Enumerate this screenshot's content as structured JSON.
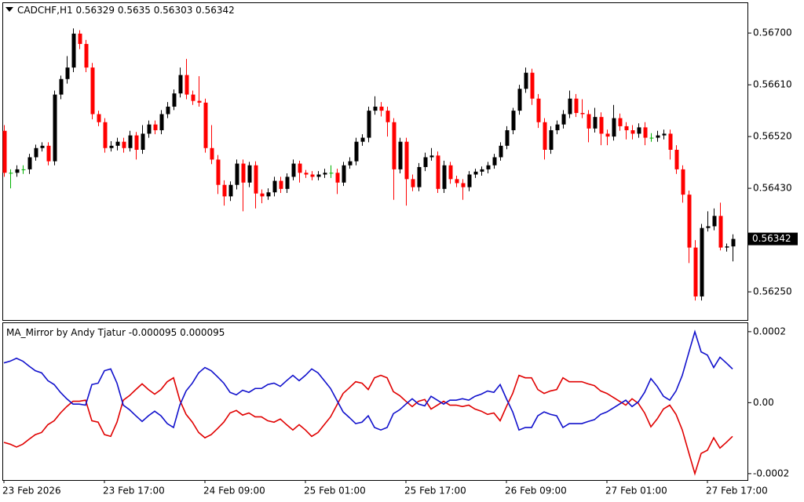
{
  "chart_data": [
    {
      "type": "candlestick",
      "title": "CADCHF,H1",
      "categories": [
        "23 Feb 2026",
        null,
        null,
        null,
        null,
        null,
        null,
        null,
        null,
        null,
        null,
        null,
        null,
        null,
        null,
        null,
        "23 Feb 17:00",
        null,
        null,
        null,
        null,
        null,
        null,
        null,
        null,
        null,
        null,
        null,
        null,
        null,
        null,
        null,
        "24 Feb 09:00",
        null,
        null,
        null,
        null,
        null,
        null,
        null,
        null,
        null,
        null,
        null,
        null,
        null,
        null,
        null,
        "25 Feb 01:00",
        null,
        null,
        null,
        null,
        null,
        null,
        null,
        null,
        null,
        null,
        null,
        null,
        null,
        null,
        null,
        "25 Feb 17:00",
        null,
        null,
        null,
        null,
        null,
        null,
        null,
        null,
        null,
        null,
        null,
        null,
        null,
        null,
        null,
        "26 Feb 09:00",
        null,
        null,
        null,
        null,
        null,
        null,
        null,
        null,
        null,
        null,
        null,
        null,
        null,
        null,
        null,
        "27 Feb 01:00",
        null,
        null,
        null,
        null,
        null,
        null,
        null,
        null,
        null,
        null,
        null,
        null,
        null,
        null,
        null,
        "27 Feb 17:00",
        null,
        null,
        null,
        null
      ],
      "open": [
        0.5653,
        0.56457,
        0.56457,
        0.56463,
        0.56463,
        0.56484,
        0.565,
        0.56504,
        0.56477,
        0.56593,
        0.5662,
        0.5664,
        0.56699,
        0.56681,
        0.5664,
        0.56559,
        0.56545,
        0.565,
        0.56504,
        0.56511,
        0.565,
        0.56522,
        0.56497,
        0.56525,
        0.56541,
        0.56531,
        0.56559,
        0.56572,
        0.56595,
        0.56627,
        0.56593,
        0.56582,
        0.56579,
        0.565,
        0.5648,
        0.56436,
        0.56416,
        0.56436,
        0.56473,
        0.5644,
        0.5647,
        0.56421,
        0.56416,
        0.56423,
        0.56443,
        0.56429,
        0.5645,
        0.56473,
        0.56457,
        0.56454,
        0.5645,
        0.56454,
        0.56457,
        0.56457,
        0.5644,
        0.5647,
        0.56477,
        0.56511,
        0.56518,
        0.56565,
        0.56572,
        0.56565,
        0.56545,
        0.56463,
        0.56511,
        0.56446,
        0.56432,
        0.56467,
        0.56484,
        0.56487,
        0.56429,
        0.5647,
        0.56446,
        0.56439,
        0.56432,
        0.56454,
        0.56459,
        0.56463,
        0.5647,
        0.56484,
        0.56504,
        0.56531,
        0.56565,
        0.56603,
        0.56631,
        0.56586,
        0.56545,
        0.56497,
        0.56531,
        0.56541,
        0.56559,
        0.56586,
        0.56561,
        0.56559,
        0.56534,
        0.56554,
        0.56525,
        0.5652,
        0.56552,
        0.56538,
        0.56531,
        0.56525,
        0.56536,
        0.56518,
        0.56518,
        0.56522,
        0.56525,
        0.56497,
        0.56463,
        0.56419,
        0.56327,
        0.56242,
        0.56361,
        0.56364,
        0.56382,
        0.56327,
        0.56329
      ],
      "high": [
        0.5654,
        0.56463,
        0.5647,
        0.5647,
        0.5649,
        0.56506,
        0.5651,
        0.5651,
        0.566,
        0.56626,
        0.5666,
        0.56708,
        0.56705,
        0.56688,
        0.56648,
        0.56565,
        0.56552,
        0.56512,
        0.56518,
        0.56518,
        0.5653,
        0.56528,
        0.5654,
        0.56548,
        0.56548,
        0.56566,
        0.5658,
        0.56602,
        0.5664,
        0.56655,
        0.566,
        0.56625,
        0.56586,
        0.5654,
        0.56488,
        0.56444,
        0.56442,
        0.5648,
        0.5648,
        0.56476,
        0.56477,
        0.56428,
        0.5643,
        0.5645,
        0.5645,
        0.56456,
        0.5648,
        0.56478,
        0.56462,
        0.5646,
        0.5646,
        0.56464,
        0.5647,
        0.56464,
        0.56476,
        0.56484,
        0.56518,
        0.56524,
        0.56572,
        0.5659,
        0.5658,
        0.56572,
        0.56552,
        0.56518,
        0.56518,
        0.56454,
        0.56474,
        0.56492,
        0.565,
        0.56494,
        0.56478,
        0.56476,
        0.56452,
        0.56446,
        0.5646,
        0.56464,
        0.56468,
        0.56476,
        0.5649,
        0.5651,
        0.56538,
        0.5657,
        0.5661,
        0.5664,
        0.56638,
        0.56594,
        0.56552,
        0.56538,
        0.56548,
        0.56566,
        0.566,
        0.56594,
        0.56585,
        0.56566,
        0.5657,
        0.56562,
        0.56532,
        0.56575,
        0.5656,
        0.56545,
        0.5654,
        0.56543,
        0.56545,
        0.56526,
        0.5653,
        0.56532,
        0.56532,
        0.56505,
        0.5647,
        0.56426,
        0.5634,
        0.56368,
        0.5639,
        0.56395,
        0.56405,
        0.56334,
        0.5635
      ],
      "low": [
        0.5645,
        0.5643,
        0.5645,
        0.56455,
        0.56455,
        0.56478,
        0.56494,
        0.5647,
        0.5647,
        0.56585,
        0.56612,
        0.56632,
        0.56672,
        0.56632,
        0.5655,
        0.56538,
        0.56492,
        0.56494,
        0.56496,
        0.56492,
        0.56494,
        0.5648,
        0.5649,
        0.56518,
        0.56524,
        0.56524,
        0.56552,
        0.56566,
        0.56588,
        0.56585,
        0.56575,
        0.56572,
        0.56492,
        0.56472,
        0.5642,
        0.564,
        0.56408,
        0.56428,
        0.5639,
        0.56432,
        0.56395,
        0.56404,
        0.5641,
        0.56416,
        0.56422,
        0.56422,
        0.56444,
        0.5644,
        0.56448,
        0.56444,
        0.56444,
        0.56448,
        0.56448,
        0.5642,
        0.56434,
        0.56464,
        0.5647,
        0.56504,
        0.5651,
        0.56558,
        0.56555,
        0.5652,
        0.5641,
        0.56456,
        0.564,
        0.56425,
        0.56425,
        0.5646,
        0.56478,
        0.56422,
        0.56422,
        0.56438,
        0.56432,
        0.5641,
        0.56425,
        0.56448,
        0.56452,
        0.56456,
        0.56464,
        0.56478,
        0.56498,
        0.56524,
        0.56558,
        0.56596,
        0.56575,
        0.56535,
        0.5648,
        0.5649,
        0.56524,
        0.56534,
        0.56552,
        0.56554,
        0.56552,
        0.5651,
        0.56527,
        0.56505,
        0.56505,
        0.56513,
        0.5653,
        0.56515,
        0.56515,
        0.56518,
        0.56505,
        0.56511,
        0.56511,
        0.56515,
        0.5648,
        0.56455,
        0.56405,
        0.563,
        0.56235,
        0.56235,
        0.56355,
        0.56357,
        0.56322,
        0.5632,
        0.56303
      ],
      "close": [
        0.56457,
        0.56457,
        0.56463,
        0.56463,
        0.56484,
        0.565,
        0.56504,
        0.56477,
        0.56593,
        0.5662,
        0.5664,
        0.56699,
        0.56681,
        0.5664,
        0.56559,
        0.56545,
        0.565,
        0.56504,
        0.56511,
        0.565,
        0.56522,
        0.56497,
        0.56525,
        0.56541,
        0.56531,
        0.56559,
        0.56572,
        0.56595,
        0.56627,
        0.56593,
        0.56582,
        0.56579,
        0.565,
        0.5648,
        0.56436,
        0.56416,
        0.56436,
        0.56473,
        0.5644,
        0.5647,
        0.56421,
        0.56416,
        0.56423,
        0.56443,
        0.56429,
        0.5645,
        0.56473,
        0.56457,
        0.56454,
        0.5645,
        0.56454,
        0.56457,
        0.56457,
        0.5644,
        0.5647,
        0.56477,
        0.56511,
        0.56518,
        0.56565,
        0.56572,
        0.56565,
        0.56545,
        0.56463,
        0.56511,
        0.56446,
        0.56432,
        0.56467,
        0.56484,
        0.56487,
        0.56429,
        0.5647,
        0.56446,
        0.56439,
        0.56432,
        0.56454,
        0.56459,
        0.56463,
        0.5647,
        0.56484,
        0.56504,
        0.56531,
        0.56565,
        0.56603,
        0.56631,
        0.56586,
        0.56545,
        0.56497,
        0.56531,
        0.56541,
        0.56559,
        0.56586,
        0.56561,
        0.56559,
        0.56534,
        0.56554,
        0.56525,
        0.5652,
        0.56552,
        0.56538,
        0.56531,
        0.56525,
        0.56536,
        0.56518,
        0.56518,
        0.56522,
        0.56525,
        0.56497,
        0.56463,
        0.56419,
        0.56327,
        0.56242,
        0.56361,
        0.56364,
        0.56382,
        0.56327,
        0.56329,
        0.56342
      ],
      "ylim": [
        0.56201,
        0.56752
      ],
      "yticks": [
        {
          "value": 0.567,
          "label": "0.56700"
        },
        {
          "value": 0.5661,
          "label": "0.56610"
        },
        {
          "value": 0.5652,
          "label": "0.56520"
        },
        {
          "value": 0.5643,
          "label": "0.56430"
        },
        {
          "value": 0.5625,
          "label": "0.56250"
        }
      ],
      "up_color": "#000000",
      "down_color": "#ff0000",
      "doji_color": "#00b000"
    },
    {
      "type": "line",
      "title": "MA_Mirror by Andy Tjatur",
      "series": [
        {
          "color": "#e00000",
          "values": [
            -0.000112,
            -0.000117,
            -0.000125,
            -0.000117,
            -0.000103,
            -9e-05,
            -8.4e-05,
            -6.2e-05,
            -5.1e-05,
            -2.9e-05,
            -1.1e-05,
            4e-06,
            4e-06,
            7e-06,
            -5.1e-05,
            -5.5e-05,
            -9e-05,
            -9.5e-05,
            -5.5e-05,
            7e-06,
            2e-05,
            3.7e-05,
            5.3e-05,
            3.7e-05,
            2.4e-05,
            3.7e-05,
            5.9e-05,
            7e-05,
            7e-06,
            -3.3e-05,
            -5.5e-05,
            -8.4e-05,
            -9.9e-05,
            -9e-05,
            -7.3e-05,
            -5.5e-05,
            -2.9e-05,
            -2.2e-05,
            -3.5e-05,
            -2.9e-05,
            -4e-05,
            -4e-05,
            -5.1e-05,
            -5.5e-05,
            -4.6e-05,
            -6.2e-05,
            -7.7e-05,
            -6.2e-05,
            -7.7e-05,
            -9.5e-05,
            -8.4e-05,
            -6.2e-05,
            -4e-05,
            -7e-06,
            2.6e-05,
            4.2e-05,
            5.9e-05,
            5.5e-05,
            3.7e-05,
            7e-05,
            7.7e-05,
            7e-05,
            3.1e-05,
            2e-05,
            4e-06,
            -1.1e-05,
            4e-06,
            9e-06,
            -1.8e-05,
            -7e-06,
            4e-06,
            -7e-06,
            -7e-06,
            -1.1e-05,
            -7e-06,
            -1.8e-05,
            -2.4e-05,
            -3.3e-05,
            -2.9e-05,
            -5.1e-05,
            -1.1e-05,
            2.6e-05,
            7.7e-05,
            7e-05,
            7e-05,
            3.7e-05,
            2.6e-05,
            3.3e-05,
            3.7e-05,
            7e-05,
            5.9e-05,
            5.9e-05,
            5.9e-05,
            5.3e-05,
            4.8e-05,
            3.3e-05,
            2.6e-05,
            1.5e-05,
            4e-06,
            -7e-06,
            1.1e-05,
            -2e-06,
            -2.9e-05,
            -6.8e-05,
            -4.6e-05,
            -1.8e-05,
            -7e-06,
            -3.3e-05,
            -7.7e-05,
            -0.000139,
            -0.0002,
            -0.000143,
            -0.000134,
            -9.9e-05,
            -0.000128,
            -0.000112,
            -9.5e-05
          ]
        },
        {
          "color": "#1010cc",
          "values": [
            0.000112,
            0.000117,
            0.000125,
            0.000117,
            0.000103,
            9e-05,
            8.4e-05,
            6.2e-05,
            5.1e-05,
            2.9e-05,
            1.1e-05,
            -4e-06,
            -4e-06,
            -7e-06,
            5.1e-05,
            5.5e-05,
            9e-05,
            9.5e-05,
            5.5e-05,
            -7e-06,
            -2e-05,
            -3.7e-05,
            -5.3e-05,
            -3.7e-05,
            -2.4e-05,
            -3.7e-05,
            -5.9e-05,
            -7e-05,
            -7e-06,
            3.3e-05,
            5.5e-05,
            8.4e-05,
            9.9e-05,
            9e-05,
            7.3e-05,
            5.5e-05,
            2.9e-05,
            2.2e-05,
            3.5e-05,
            2.9e-05,
            4e-05,
            4e-05,
            5.1e-05,
            5.5e-05,
            4.6e-05,
            6.2e-05,
            7.7e-05,
            6.2e-05,
            7.7e-05,
            9.5e-05,
            8.4e-05,
            6.2e-05,
            4e-05,
            7e-06,
            -2.6e-05,
            -4.2e-05,
            -5.9e-05,
            -5.5e-05,
            -3.7e-05,
            -7e-05,
            -7.7e-05,
            -7e-05,
            -3.1e-05,
            -2e-05,
            -4e-06,
            1.1e-05,
            -4e-06,
            -9e-06,
            1.8e-05,
            7e-06,
            -4e-06,
            7e-06,
            7e-06,
            1.1e-05,
            7e-06,
            1.8e-05,
            2.4e-05,
            3.3e-05,
            2.9e-05,
            5.1e-05,
            1.1e-05,
            -2.6e-05,
            -7.7e-05,
            -7e-05,
            -7e-05,
            -3.7e-05,
            -2.6e-05,
            -3.3e-05,
            -3.7e-05,
            -7e-05,
            -5.9e-05,
            -5.9e-05,
            -5.9e-05,
            -5.3e-05,
            -4.8e-05,
            -3.3e-05,
            -2.6e-05,
            -1.5e-05,
            -4e-06,
            7e-06,
            -1.1e-05,
            2e-06,
            2.9e-05,
            6.8e-05,
            4.6e-05,
            1.8e-05,
            7e-06,
            3.3e-05,
            7.7e-05,
            0.000139,
            0.0002,
            0.000143,
            0.000134,
            9.9e-05,
            0.000128,
            0.000112,
            9.5e-05
          ]
        }
      ],
      "ylim": [
        -0.000218,
        0.000224
      ],
      "yticks": [
        0.0002,
        {
          "value": 0,
          "label": "0.00"
        },
        -0.0002
      ]
    }
  ]
}
